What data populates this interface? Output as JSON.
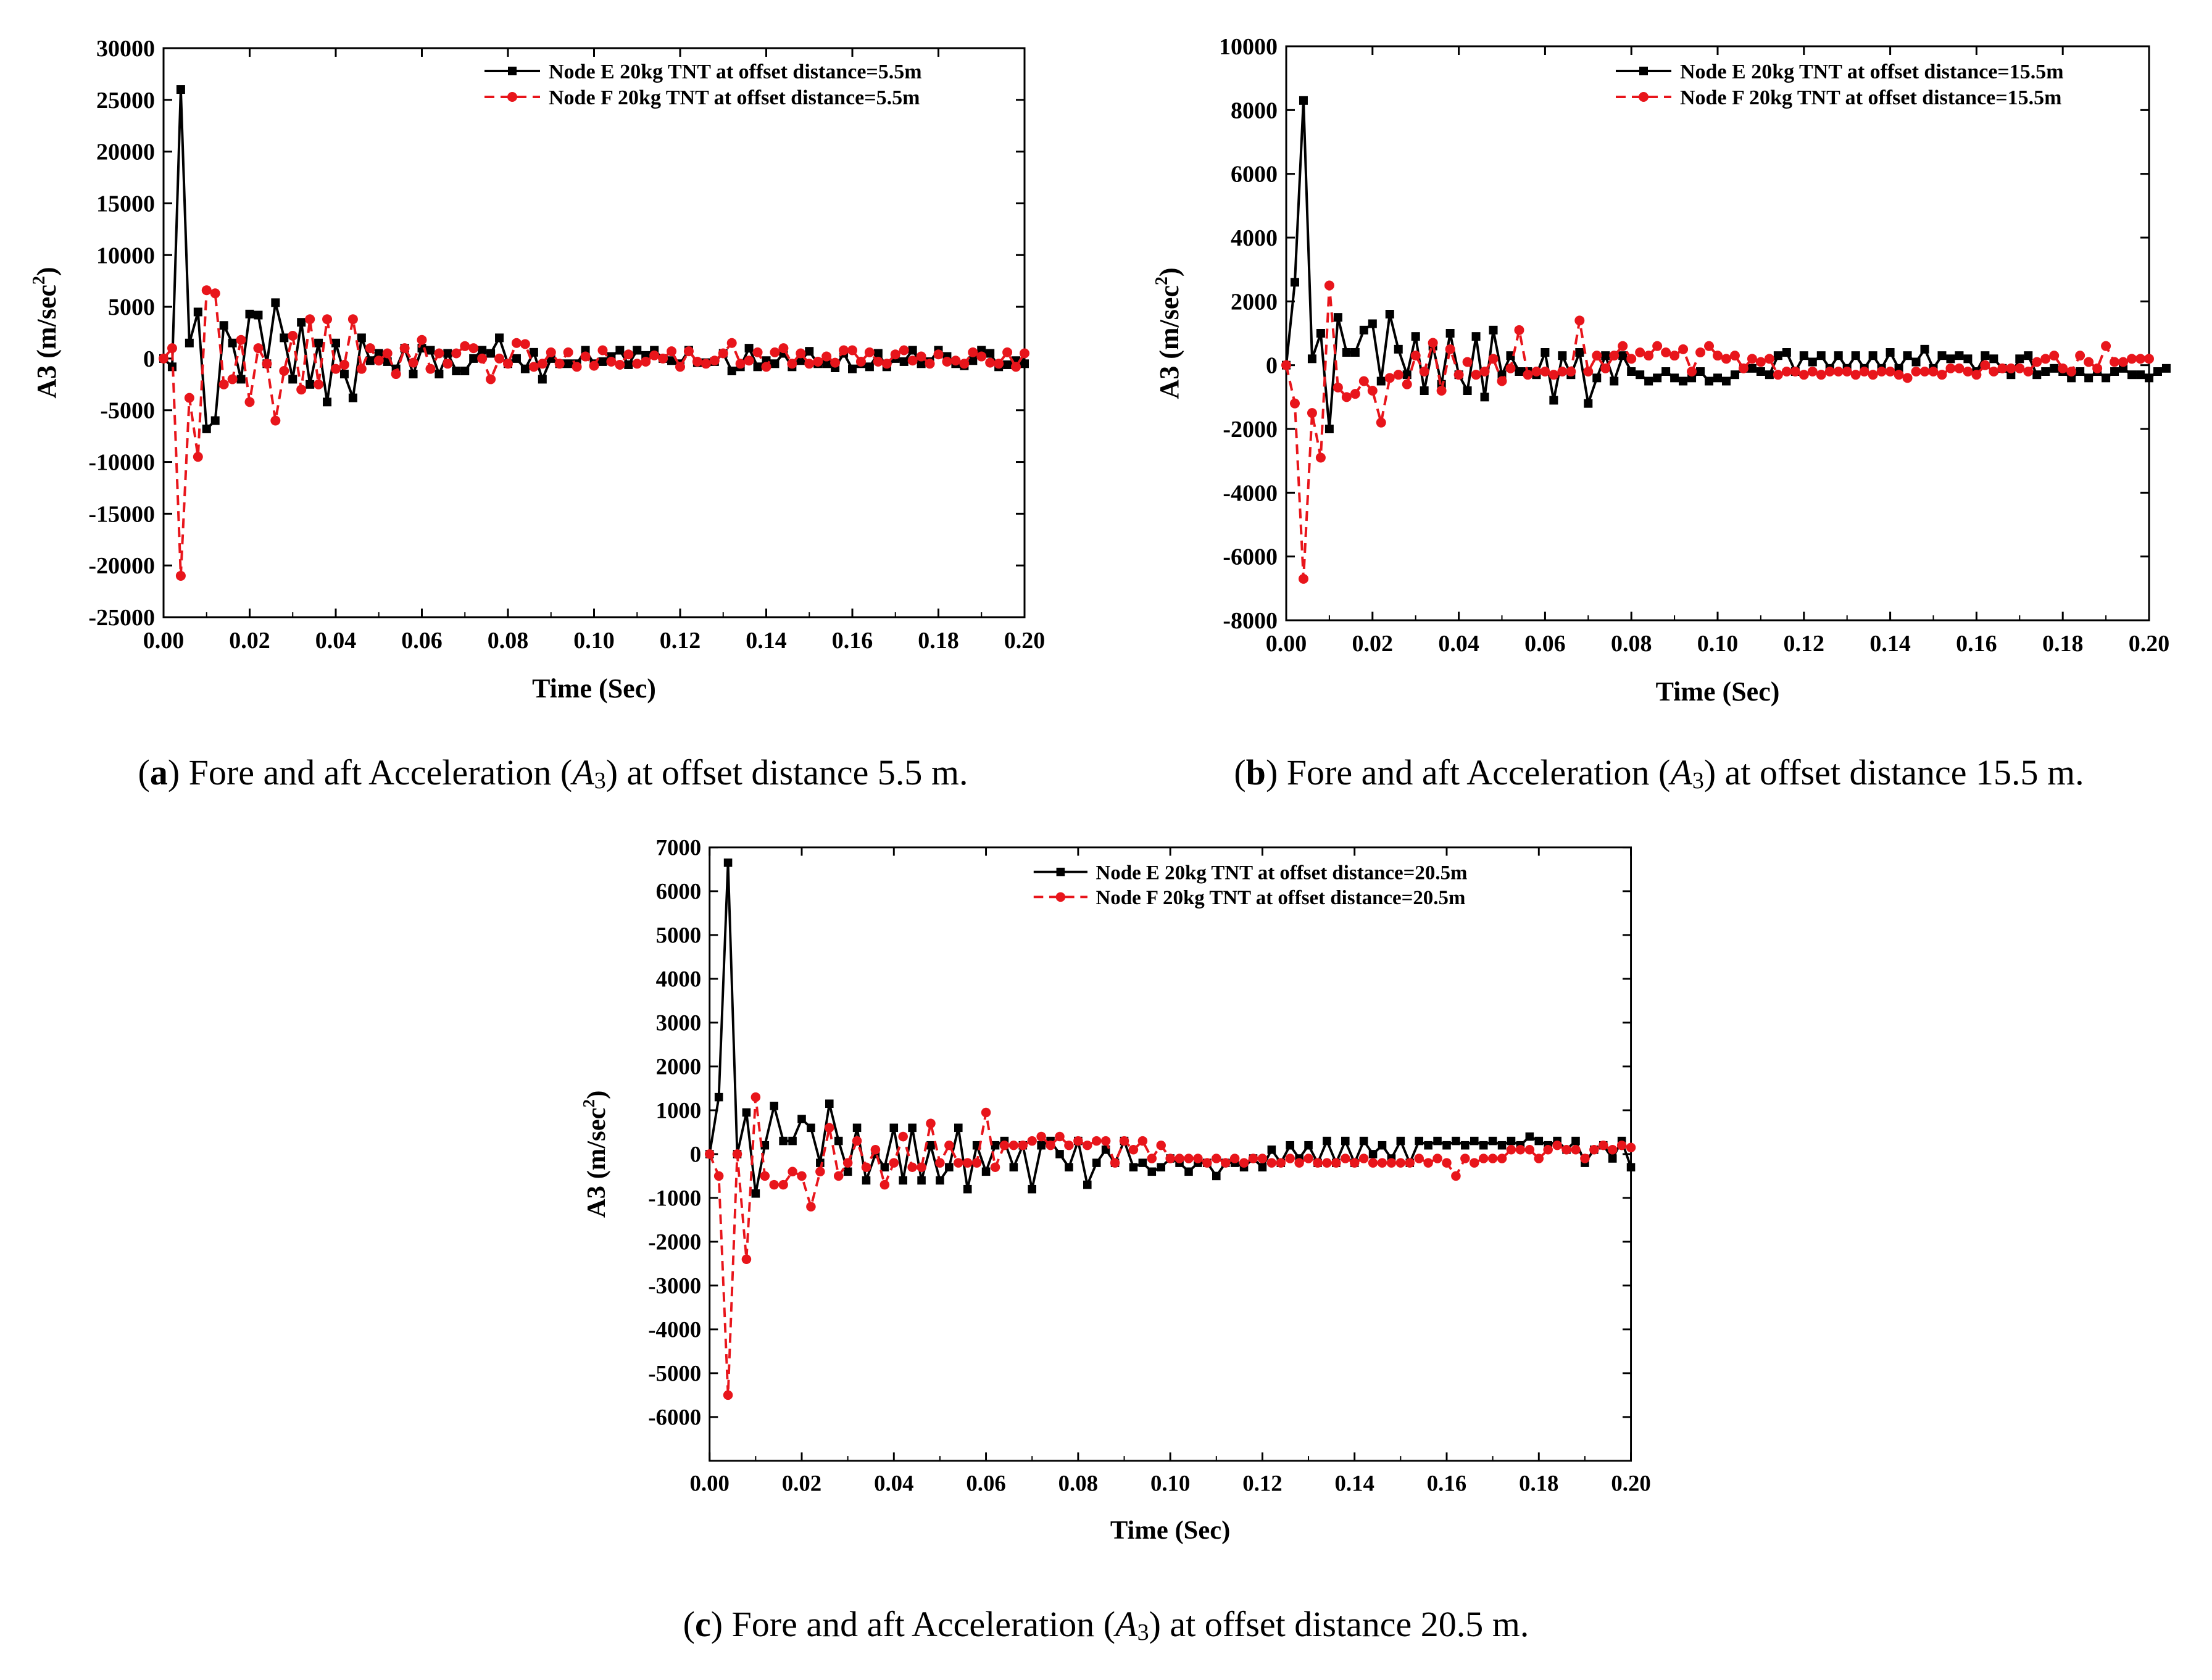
{
  "figure": {
    "panels": [
      {
        "letter": "a",
        "caption_pre": " Fore and aft Acceleration (",
        "caption_sym": "A",
        "caption_sub": "3",
        "caption_post": ") at offset distance 5.5 m."
      },
      {
        "letter": "b",
        "caption_pre": " Fore and aft Acceleration (",
        "caption_sym": "A",
        "caption_sub": "3",
        "caption_post": ") at offset distance 15.5 m."
      },
      {
        "letter": "c",
        "caption_pre": " Fore and aft Acceleration (",
        "caption_sym": "A",
        "caption_sub": "3",
        "caption_post": ") at offset distance 20.5 m."
      }
    ]
  },
  "colors": {
    "node_e": "#000000",
    "node_f": "#e8151b"
  },
  "chart_data": [
    {
      "type": "line",
      "xlabel": "Time (Sec)",
      "ylabel": "A3 (m/sec²)",
      "xlim": [
        0.0,
        0.2
      ],
      "ylim": [
        -25000,
        30000
      ],
      "xticks": [
        "0.00",
        "0.02",
        "0.04",
        "0.06",
        "0.08",
        "0.10",
        "0.12",
        "0.14",
        "0.16",
        "0.18",
        "0.20"
      ],
      "yticks": [
        "-25000",
        "-20000",
        "-15000",
        "-10000",
        "-5000",
        "0",
        "5000",
        "10000",
        "15000",
        "20000",
        "25000",
        "30000"
      ],
      "x_step": 0.002,
      "legend_position": "top-right",
      "series": [
        {
          "name": "Node E 20kg TNT at offset distance=5.5m",
          "style": "solid-square",
          "values": [
            0,
            -800,
            26000,
            1500,
            4500,
            -6800,
            -6000,
            3200,
            1500,
            -2000,
            4300,
            4200,
            -500,
            5400,
            2000,
            -2000,
            3500,
            -2500,
            1500,
            -4200,
            1500,
            -1500,
            -3800,
            2000,
            -200,
            500,
            -300,
            -1000,
            1000,
            -1500,
            1000,
            800,
            -1500,
            500,
            -1200,
            -1200,
            0,
            800,
            500,
            2000,
            -500,
            0,
            -1000,
            600,
            -2000,
            0,
            -500,
            -500,
            -500,
            800,
            -500,
            -300,
            200,
            800,
            -600,
            800,
            300,
            800,
            0,
            -200,
            -500,
            800,
            -400,
            -400,
            -300,
            500,
            -1200,
            -800,
            1000,
            -800,
            -200,
            -500,
            500,
            -800,
            -200,
            700,
            -500,
            -500,
            -900,
            500,
            -1000,
            -500,
            -800,
            500,
            -800,
            0,
            -300,
            800,
            -500,
            -300,
            800,
            200,
            -500,
            -700,
            -200,
            800,
            500,
            -800,
            -600,
            -200,
            -500
          ],
          "color_key": "node_e"
        },
        {
          "name": "Node F 20kg TNT at offset distance=5.5m",
          "style": "dashed-circle",
          "values": [
            0,
            1000,
            -21000,
            -3800,
            -9500,
            6600,
            6300,
            -2500,
            -2000,
            1800,
            -4200,
            1000,
            -500,
            -6000,
            -1200,
            2200,
            -3000,
            3800,
            -2500,
            3800,
            -1000,
            -600,
            3800,
            -1000,
            1000,
            -200,
            500,
            -1500,
            1000,
            -400,
            1800,
            -1000,
            500,
            -500,
            500,
            1200,
            1000,
            0,
            -2000,
            0,
            -500,
            1500,
            1400,
            -800,
            -500,
            600,
            -500,
            600,
            -800,
            200,
            -700,
            800,
            -300,
            -600,
            400,
            -500,
            -300,
            300,
            0,
            700,
            -800,
            700,
            -300,
            -500,
            -200,
            500,
            1500,
            -500,
            -200,
            600,
            -800,
            600,
            1000,
            -500,
            500,
            -500,
            -300,
            200,
            -400,
            800,
            800,
            -300,
            600,
            -300,
            -500,
            400,
            800,
            -200,
            200,
            -500,
            400,
            -300,
            -200,
            -500,
            600,
            200,
            -400,
            -500,
            600,
            -800,
            500
          ],
          "color_key": "node_f"
        }
      ]
    },
    {
      "type": "line",
      "xlabel": "Time (Sec)",
      "ylabel": "A3 (m/sec²)",
      "xlim": [
        0.0,
        0.2
      ],
      "ylim": [
        -8000,
        10000
      ],
      "xticks": [
        "0.00",
        "0.02",
        "0.04",
        "0.06",
        "0.08",
        "0.10",
        "0.12",
        "0.14",
        "0.16",
        "0.18",
        "0.20"
      ],
      "yticks": [
        "-8000",
        "-6000",
        "-4000",
        "-2000",
        "0",
        "2000",
        "4000",
        "6000",
        "8000",
        "10000"
      ],
      "x_step": 0.002,
      "legend_position": "top-right",
      "series": [
        {
          "name": "Node E 20kg TNT at offset distance=15.5m",
          "style": "solid-square",
          "values": [
            0,
            2600,
            8300,
            200,
            1000,
            -2000,
            1500,
            400,
            400,
            1100,
            1300,
            -500,
            1600,
            500,
            -300,
            900,
            -800,
            600,
            -600,
            1000,
            -300,
            -800,
            900,
            -1000,
            1100,
            -300,
            300,
            -200,
            -200,
            -300,
            400,
            -1100,
            300,
            -300,
            400,
            -1200,
            -400,
            300,
            -500,
            300,
            -200,
            -300,
            -500,
            -400,
            -200,
            -400,
            -500,
            -400,
            -200,
            -500,
            -400,
            -500,
            -300,
            -100,
            -100,
            -200,
            -300,
            300,
            400,
            -200,
            300,
            100,
            300,
            -100,
            300,
            -100,
            300,
            -100,
            300,
            -100,
            400,
            -100,
            300,
            100,
            500,
            -100,
            300,
            200,
            300,
            200,
            -200,
            300,
            200,
            -100,
            -300,
            200,
            300,
            -300,
            -200,
            -100,
            -200,
            -400,
            -200,
            -400,
            -200,
            -400,
            -200,
            -100,
            -300,
            -300,
            -400,
            -200,
            -100
          ],
          "color_key": "node_e"
        },
        {
          "name": "Node F 20kg TNT at offset distance=15.5m",
          "style": "dashed-circle",
          "values": [
            0,
            -1200,
            -6700,
            -1500,
            -2900,
            2500,
            -700,
            -1000,
            -900,
            -500,
            -800,
            -1800,
            -400,
            -300,
            -600,
            300,
            -200,
            700,
            -800,
            500,
            -300,
            100,
            -300,
            -200,
            200,
            -500,
            -100,
            1100,
            -300,
            -200,
            -200,
            -300,
            -200,
            -200,
            1400,
            -200,
            300,
            -100,
            300,
            600,
            200,
            400,
            300,
            600,
            400,
            300,
            500,
            -200,
            400,
            600,
            300,
            200,
            300,
            -100,
            200,
            100,
            200,
            -300,
            -200,
            -200,
            -300,
            -200,
            -300,
            -200,
            -200,
            -200,
            -300,
            -200,
            -300,
            -200,
            -200,
            -300,
            -400,
            -200,
            -200,
            -200,
            -300,
            -100,
            -100,
            -200,
            -300,
            0,
            -200,
            -100,
            -100,
            -100,
            -200,
            100,
            200,
            300,
            -100,
            -200,
            300,
            100,
            -100,
            600,
            100,
            100,
            200,
            200,
            200
          ],
          "color_key": "node_f"
        }
      ]
    },
    {
      "type": "line",
      "xlabel": "Time (Sec)",
      "ylabel": "A3 (m/sec²)",
      "xlim": [
        0.0,
        0.2
      ],
      "ylim": [
        -7000,
        7000
      ],
      "xticks": [
        "0.00",
        "0.02",
        "0.04",
        "0.06",
        "0.08",
        "0.10",
        "0.12",
        "0.14",
        "0.16",
        "0.18",
        "0.20"
      ],
      "yticks": [
        "-6000",
        "-5000",
        "-4000",
        "-3000",
        "-2000",
        "-1000",
        "0",
        "1000",
        "2000",
        "3000",
        "4000",
        "5000",
        "6000",
        "7000"
      ],
      "x_step": 0.002,
      "legend_position": "top-right",
      "series": [
        {
          "name": "Node E 20kg TNT at offset distance=20.5m",
          "style": "solid-square",
          "values": [
            0,
            1300,
            6650,
            0,
            950,
            -900,
            200,
            1100,
            300,
            300,
            800,
            600,
            -200,
            1150,
            300,
            -400,
            600,
            -600,
            0,
            -300,
            600,
            -600,
            600,
            -600,
            200,
            -600,
            -300,
            600,
            -800,
            200,
            -400,
            200,
            300,
            -300,
            200,
            -800,
            200,
            300,
            0,
            -300,
            300,
            -700,
            -200,
            100,
            -200,
            300,
            -300,
            -200,
            -400,
            -300,
            -100,
            -200,
            -400,
            -200,
            -200,
            -500,
            -200,
            -200,
            -300,
            -100,
            -300,
            100,
            -200,
            200,
            -100,
            200,
            -200,
            300,
            -200,
            300,
            -200,
            300,
            0,
            200,
            -100,
            300,
            -200,
            300,
            200,
            300,
            200,
            300,
            200,
            300,
            200,
            300,
            200,
            300,
            200,
            400,
            300,
            200,
            300,
            100,
            300,
            -200,
            100,
            200,
            -100,
            300,
            -300
          ],
          "color_key": "node_e"
        },
        {
          "name": "Node F 20kg TNT at offset distance=20.5m",
          "style": "dashed-circle",
          "values": [
            0,
            -500,
            -5500,
            0,
            -2400,
            1300,
            -500,
            -700,
            -700,
            -400,
            -500,
            -1200,
            -400,
            600,
            -500,
            -200,
            300,
            -300,
            100,
            -700,
            -200,
            400,
            -300,
            -300,
            700,
            -200,
            200,
            -200,
            -200,
            -200,
            950,
            -300,
            200,
            200,
            200,
            300,
            400,
            200,
            400,
            200,
            300,
            200,
            300,
            300,
            -200,
            300,
            100,
            300,
            -100,
            200,
            -100,
            -100,
            -100,
            -100,
            -200,
            -100,
            -200,
            -100,
            -200,
            -100,
            -100,
            -200,
            -200,
            -100,
            -200,
            -100,
            -200,
            -200,
            -200,
            -100,
            -200,
            -100,
            -200,
            -200,
            -200,
            -200,
            -200,
            -100,
            -200,
            -100,
            -200,
            -500,
            -100,
            -200,
            -100,
            -100,
            -100,
            100,
            100,
            100,
            -100,
            100,
            200,
            100,
            100,
            -100,
            100,
            200,
            100,
            200,
            150
          ],
          "color_key": "node_f"
        }
      ]
    }
  ]
}
